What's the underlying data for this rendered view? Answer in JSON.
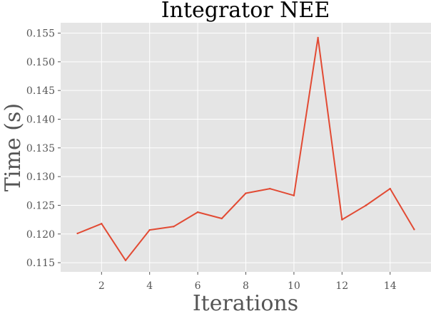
{
  "chart_data": {
    "type": "line",
    "title": "Integrator NEE",
    "xlabel": "Iterations",
    "ylabel": "Time (s)",
    "x": [
      1,
      2,
      3,
      4,
      5,
      6,
      7,
      8,
      9,
      10,
      11,
      12,
      13,
      14,
      15
    ],
    "series": [
      {
        "values": [
          0.1201,
          0.1218,
          0.1154,
          0.1207,
          0.1213,
          0.1238,
          0.1227,
          0.1271,
          0.1279,
          0.1267,
          0.1542,
          0.1225,
          0.125,
          0.1279,
          0.1208
        ],
        "color": "#e24a33"
      }
    ],
    "xticks": [
      2,
      4,
      6,
      8,
      10,
      12,
      14
    ],
    "xtick_labels": [
      "2",
      "4",
      "6",
      "8",
      "10",
      "12",
      "14"
    ],
    "yticks": [
      0.115,
      0.12,
      0.125,
      0.13,
      0.135,
      0.14,
      0.145,
      0.15,
      0.155
    ],
    "ytick_labels": [
      "0.115",
      "0.120",
      "0.125",
      "0.130",
      "0.135",
      "0.140",
      "0.145",
      "0.150",
      "0.155"
    ],
    "xlim": [
      0.3,
      15.7
    ],
    "ylim": [
      0.1134,
      0.1568
    ],
    "grid": true,
    "background_color": "#e5e5e5",
    "grid_color": "#ffffff"
  }
}
